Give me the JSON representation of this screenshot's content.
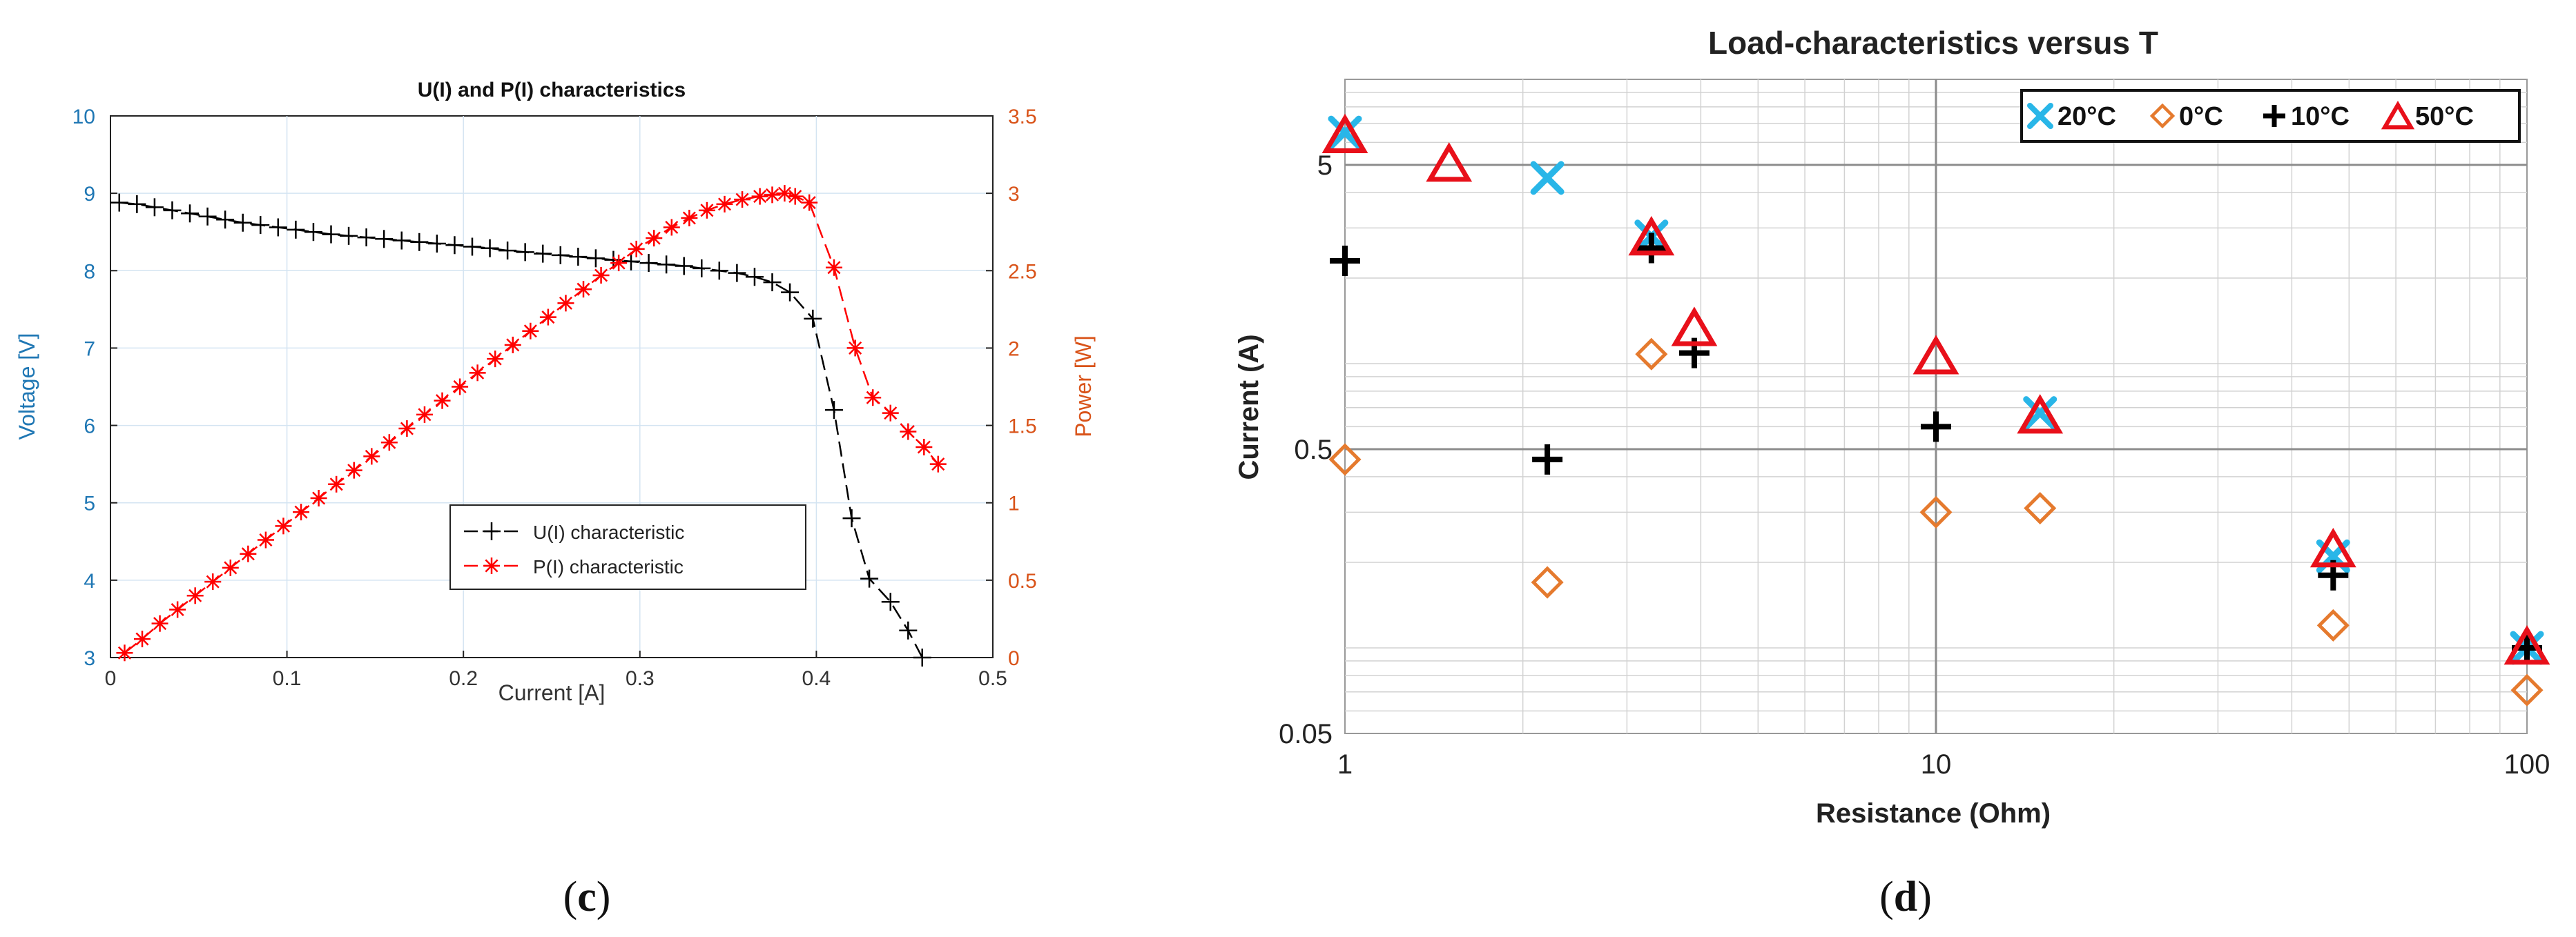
{
  "panels": [
    {
      "label_open": "(",
      "label_letter": "c",
      "label_close": ")"
    },
    {
      "label_open": "(",
      "label_letter": "d",
      "label_close": ")"
    }
  ],
  "colors": {
    "left_axis": "#1f77b4",
    "right_axis": "#d95319",
    "u_series": "#000000",
    "p_series": "#ff0000",
    "c20": "#29b6e8",
    "c0": "#e57a2e",
    "c10": "#000000",
    "c50": "#e8101a"
  },
  "chart_data": [
    {
      "type": "line",
      "title": "U(I) and P(I) characteristics",
      "xlabel": "Current [A]",
      "ylabel_left": "Voltage [V]",
      "ylabel_right": "Power [W]",
      "xlim": [
        0,
        0.5
      ],
      "ylim_left": [
        3,
        10
      ],
      "ylim_right": [
        0,
        3.5
      ],
      "xticks": [
        0,
        0.1,
        0.2,
        0.3,
        0.4,
        0.5
      ],
      "xtick_labels": [
        "0",
        "0.1",
        "0.2",
        "0.3",
        "0.4",
        "0.5"
      ],
      "yticks_left": [
        3,
        4,
        5,
        6,
        7,
        8,
        9,
        10
      ],
      "ytick_labels_left": [
        "3",
        "4",
        "5",
        "6",
        "7",
        "8",
        "9",
        "10"
      ],
      "yticks_right": [
        0,
        0.5,
        1,
        1.5,
        2,
        2.5,
        3,
        3.5
      ],
      "ytick_labels_right": [
        "0",
        "0.5",
        "1",
        "1.5",
        "2",
        "2.5",
        "3",
        "3.5"
      ],
      "grid": true,
      "legend_position": "lower-right",
      "series": [
        {
          "name": "U(I) characteristic",
          "axis": "left",
          "marker": "plus",
          "line": "dashed",
          "x": [
            0.005,
            0.015,
            0.025,
            0.035,
            0.045,
            0.055,
            0.065,
            0.075,
            0.085,
            0.095,
            0.105,
            0.115,
            0.125,
            0.135,
            0.145,
            0.155,
            0.165,
            0.175,
            0.185,
            0.195,
            0.205,
            0.215,
            0.225,
            0.235,
            0.245,
            0.255,
            0.265,
            0.275,
            0.285,
            0.295,
            0.305,
            0.315,
            0.325,
            0.335,
            0.345,
            0.355,
            0.365,
            0.375,
            0.385,
            0.398,
            0.41,
            0.42,
            0.43,
            0.442,
            0.452,
            0.46
          ],
          "y": [
            8.88,
            8.86,
            8.82,
            8.78,
            8.74,
            8.7,
            8.66,
            8.62,
            8.59,
            8.56,
            8.53,
            8.5,
            8.47,
            8.45,
            8.43,
            8.41,
            8.39,
            8.37,
            8.35,
            8.33,
            8.31,
            8.29,
            8.26,
            8.24,
            8.22,
            8.2,
            8.18,
            8.16,
            8.14,
            8.12,
            8.1,
            8.08,
            8.06,
            8.03,
            8.0,
            7.97,
            7.92,
            7.85,
            7.72,
            7.38,
            6.2,
            4.8,
            4.02,
            3.72,
            3.35,
            3.0
          ]
        },
        {
          "name": "P(I) characteristic",
          "axis": "right",
          "marker": "asterisk",
          "line": "dashed",
          "x": [
            0.008,
            0.018,
            0.028,
            0.038,
            0.048,
            0.058,
            0.068,
            0.078,
            0.088,
            0.098,
            0.108,
            0.118,
            0.128,
            0.138,
            0.148,
            0.158,
            0.168,
            0.178,
            0.188,
            0.198,
            0.208,
            0.218,
            0.228,
            0.238,
            0.248,
            0.258,
            0.268,
            0.278,
            0.288,
            0.298,
            0.308,
            0.318,
            0.328,
            0.338,
            0.348,
            0.358,
            0.368,
            0.375,
            0.382,
            0.388,
            0.396,
            0.41,
            0.422,
            0.432,
            0.442,
            0.452,
            0.461,
            0.469
          ],
          "y": [
            0.03,
            0.12,
            0.22,
            0.31,
            0.4,
            0.49,
            0.58,
            0.67,
            0.76,
            0.85,
            0.94,
            1.03,
            1.12,
            1.21,
            1.3,
            1.39,
            1.48,
            1.57,
            1.66,
            1.75,
            1.84,
            1.93,
            2.02,
            2.11,
            2.2,
            2.29,
            2.38,
            2.47,
            2.55,
            2.64,
            2.71,
            2.78,
            2.84,
            2.89,
            2.93,
            2.96,
            2.98,
            2.99,
            3.0,
            2.98,
            2.94,
            2.52,
            2.0,
            1.68,
            1.58,
            1.46,
            1.36,
            1.25
          ]
        }
      ]
    },
    {
      "type": "scatter",
      "title": "Load-characteristics versus T",
      "xlabel": "Resistance (Ohm)",
      "ylabel": "Current (A)",
      "xscale": "log",
      "yscale": "log",
      "xlim": [
        1,
        100
      ],
      "ylim": [
        0.05,
        10
      ],
      "xticks": [
        1,
        10,
        100
      ],
      "xtick_labels": [
        "1",
        "10",
        "100"
      ],
      "yticks": [
        0.05,
        0.5,
        5
      ],
      "ytick_labels": [
        "0.05",
        "0.5",
        "5"
      ],
      "grid": true,
      "legend_position": "top-right",
      "series": [
        {
          "name": "20°C",
          "marker": "x",
          "x": [
            1,
            2.2,
            3.3,
            15,
            47,
            100
          ],
          "y": [
            6.5,
            4.5,
            2.8,
            0.67,
            0.21,
            0.1
          ]
        },
        {
          "name": "0°C",
          "marker": "diamond",
          "x": [
            1,
            2.2,
            3.3,
            10,
            15,
            47,
            100
          ],
          "y": [
            0.46,
            0.17,
            1.08,
            0.3,
            0.31,
            0.12,
            0.071
          ]
        },
        {
          "name": "10°C",
          "marker": "plus",
          "x": [
            1,
            2.2,
            3.3,
            3.9,
            10,
            47,
            100
          ],
          "y": [
            2.3,
            0.46,
            2.55,
            1.09,
            0.6,
            0.18,
            0.1
          ]
        },
        {
          "name": "50°C",
          "marker": "triangle",
          "x": [
            1,
            1.5,
            3.3,
            3.9,
            10,
            15,
            47,
            100
          ],
          "y": [
            6.3,
            5.0,
            2.75,
            1.32,
            1.05,
            0.65,
            0.22,
            0.1
          ]
        }
      ]
    }
  ]
}
